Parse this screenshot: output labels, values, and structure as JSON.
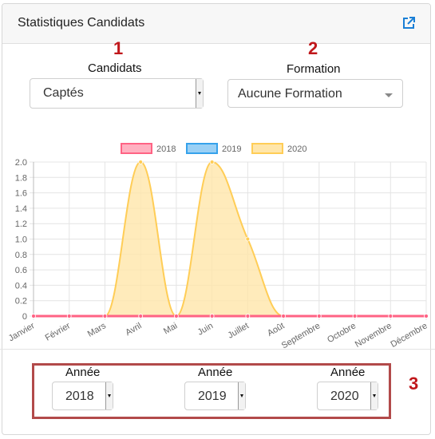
{
  "header": {
    "title": "Statistiques Candidats",
    "icon": "external-link-icon"
  },
  "annotations": {
    "one": "1",
    "two": "2",
    "three": "3"
  },
  "filters": {
    "candidats": {
      "label": "Candidats",
      "value": "Captés"
    },
    "formation": {
      "label": "Formation",
      "value": "Aucune Formation"
    }
  },
  "years": [
    {
      "label": "Année",
      "value": "2018"
    },
    {
      "label": "Année",
      "value": "2019"
    },
    {
      "label": "Année",
      "value": "2020"
    }
  ],
  "chart_data": {
    "type": "area",
    "categories": [
      "Janvier",
      "Février",
      "Mars",
      "Avril",
      "Mai",
      "Juin",
      "Juillet",
      "Août",
      "Septembre",
      "Octobre",
      "Novembre",
      "Décembre"
    ],
    "ylim": [
      0,
      2.0
    ],
    "yticks": [
      "0",
      "0.2",
      "0.4",
      "0.6",
      "0.8",
      "1.0",
      "1.2",
      "1.4",
      "1.6",
      "1.8",
      "2.0"
    ],
    "grid": true,
    "legend_position": "top",
    "series": [
      {
        "name": "2018",
        "color": "#ff6384",
        "fill": "#ffb1c1",
        "values": [
          0,
          0,
          0,
          0,
          0,
          0,
          0,
          0,
          0,
          0,
          0,
          0
        ]
      },
      {
        "name": "2019",
        "color": "#36a2eb",
        "fill": "#9ad0f5",
        "values": [
          0,
          0,
          0,
          0,
          0,
          0,
          0,
          0,
          0,
          0,
          0,
          0
        ]
      },
      {
        "name": "2020",
        "color": "#ffcd56",
        "fill": "#ffe6aa",
        "values": [
          0,
          0,
          0,
          2,
          0,
          2,
          1,
          0,
          0,
          0,
          0,
          0
        ]
      }
    ]
  }
}
